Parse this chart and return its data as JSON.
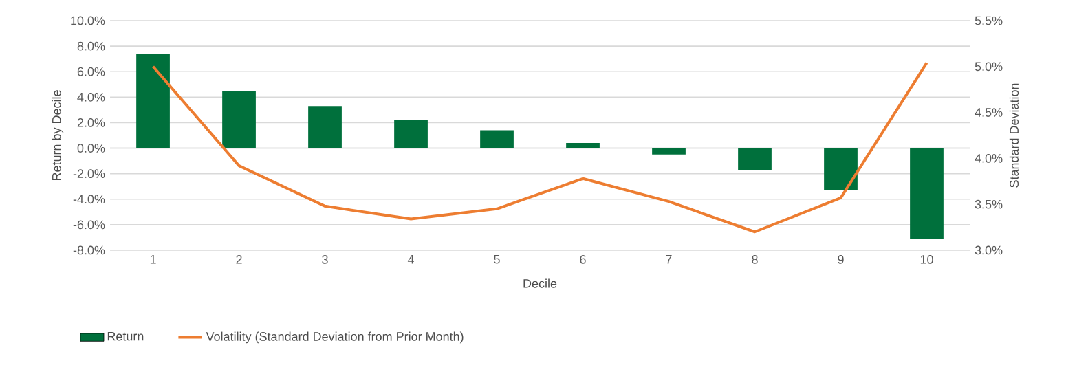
{
  "chart_data": {
    "type": "bar",
    "xlabel": "Decile",
    "ylabel": "Return by Decile",
    "y2label": "Standard Deviation",
    "categories": [
      "1",
      "2",
      "3",
      "4",
      "5",
      "6",
      "7",
      "8",
      "9",
      "10"
    ],
    "series": [
      {
        "name": "Return",
        "color": "#00703c",
        "values": [
          7.4,
          4.5,
          3.3,
          2.2,
          1.4,
          0.4,
          -0.5,
          -1.7,
          -3.3,
          -7.1
        ]
      },
      {
        "name": "Volatility (Standard Deviation from Prior Month)",
        "type": "line",
        "axis": "y2",
        "color": "#ed7d31",
        "values": [
          5.0,
          3.92,
          3.48,
          3.34,
          3.45,
          3.78,
          3.53,
          3.2,
          3.57,
          5.04
        ]
      }
    ],
    "ylim": [
      -8,
      10
    ],
    "yticks": [
      {
        "value": -8,
        "label": "-8.0%"
      },
      {
        "value": -6,
        "label": "-6.0%"
      },
      {
        "value": -4,
        "label": "-4.0%"
      },
      {
        "value": -2,
        "label": "-2.0%"
      },
      {
        "value": 0,
        "label": "0.0%"
      },
      {
        "value": 2,
        "label": "2.0%"
      },
      {
        "value": 4,
        "label": "4.0%"
      },
      {
        "value": 6,
        "label": "6.0%"
      },
      {
        "value": 8,
        "label": "8.0%"
      },
      {
        "value": 10,
        "label": "10.0%"
      }
    ],
    "y2lim": [
      3.0,
      5.5
    ],
    "y2ticks": [
      {
        "value": 3.0,
        "label": "3.0%"
      },
      {
        "value": 3.5,
        "label": "3.5%"
      },
      {
        "value": 4.0,
        "label": "4.0%"
      },
      {
        "value": 4.5,
        "label": "4.5%"
      },
      {
        "value": 5.0,
        "label": "5.0%"
      },
      {
        "value": 5.5,
        "label": "5.5%"
      }
    ],
    "grid": "y",
    "legend": "bottom",
    "marker": "none",
    "line_style": "solid"
  }
}
